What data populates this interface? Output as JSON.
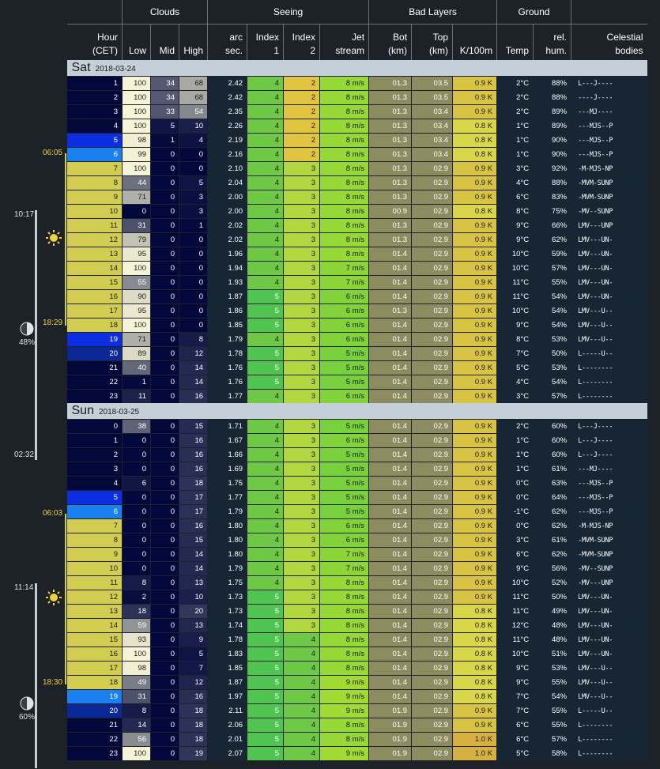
{
  "header": {
    "groups": [
      {
        "label": "",
        "span": 1
      },
      {
        "label": "Clouds",
        "span": 3
      },
      {
        "label": "Seeing",
        "span": 4
      },
      {
        "label": "Bad Layers",
        "span": 3
      },
      {
        "label": "Ground",
        "span": 2
      },
      {
        "label": "",
        "span": 1
      }
    ],
    "columns": [
      [
        "Hour",
        "(CET)"
      ],
      [
        "Low"
      ],
      [
        "Mid"
      ],
      [
        "High"
      ],
      [
        "arc",
        "sec."
      ],
      [
        "Index",
        "1"
      ],
      [
        "Index",
        "2"
      ],
      [
        "Jet",
        "stream"
      ],
      [
        "Bot",
        "(km)"
      ],
      [
        "Top",
        "(km)"
      ],
      [
        "K/100m"
      ],
      [
        "Temp"
      ],
      [
        "rel.",
        "hum."
      ],
      [
        "Celestial",
        "bodies"
      ]
    ]
  },
  "days": [
    {
      "name": "Sat",
      "date": "2018-03-24",
      "rows": [
        [
          "1",
          "100",
          "34",
          "68",
          "2.42",
          "4",
          "2",
          "8 m/s",
          "01.3",
          "03.5",
          "0.9 K",
          "2°C",
          "88%",
          "L---J----"
        ],
        [
          "2",
          "100",
          "34",
          "68",
          "2.42",
          "4",
          "2",
          "8 m/s",
          "01.3",
          "03.5",
          "0.9 K",
          "2°C",
          "88%",
          "----J----"
        ],
        [
          "3",
          "100",
          "33",
          "54",
          "2.35",
          "4",
          "2",
          "8 m/s",
          "01.3",
          "03.4",
          "0.9 K",
          "2°C",
          "89%",
          "---MJ----"
        ],
        [
          "4",
          "100",
          "5",
          "10",
          "2.26",
          "4",
          "2",
          "8 m/s",
          "01.3",
          "03.4",
          "0.8 K",
          "1°C",
          "89%",
          "---MJS--P"
        ],
        [
          "5",
          "98",
          "1",
          "4",
          "2.19",
          "4",
          "2",
          "8 m/s",
          "01.3",
          "03.4",
          "0.8 K",
          "1°C",
          "90%",
          "---MJS--P"
        ],
        [
          "6",
          "99",
          "0",
          "0",
          "2.16",
          "4",
          "2",
          "8 m/s",
          "01.3",
          "03.4",
          "0.8 K",
          "1°C",
          "90%",
          "---MJS--P"
        ],
        [
          "7",
          "100",
          "0",
          "0",
          "2.10",
          "4",
          "3",
          "8 m/s",
          "01.3",
          "02.9",
          "0.9 K",
          "3°C",
          "92%",
          "-M-MJS-NP"
        ],
        [
          "8",
          "44",
          "0",
          "5",
          "2.04",
          "4",
          "3",
          "8 m/s",
          "01.3",
          "02.9",
          "0.9 K",
          "4°C",
          "88%",
          "-MVM-SUNP"
        ],
        [
          "9",
          "71",
          "0",
          "3",
          "2.00",
          "4",
          "3",
          "8 m/s",
          "01.3",
          "02.9",
          "0.9 K",
          "6°C",
          "83%",
          "-MVM-SUNP"
        ],
        [
          "10",
          "0",
          "0",
          "3",
          "2.00",
          "4",
          "3",
          "8 m/s",
          "00.9",
          "02.9",
          "0.8 K",
          "8°C",
          "75%",
          "-MV--SUNP"
        ],
        [
          "11",
          "31",
          "0",
          "1",
          "2.02",
          "4",
          "3",
          "8 m/s",
          "01.3",
          "02.9",
          "0.9 K",
          "9°C",
          "66%",
          "LMV---UNP"
        ],
        [
          "12",
          "79",
          "0",
          "0",
          "2.02",
          "4",
          "3",
          "8 m/s",
          "01.3",
          "02.9",
          "0.9 K",
          "9°C",
          "62%",
          "LMV---UN-"
        ],
        [
          "13",
          "95",
          "0",
          "0",
          "1.96",
          "4",
          "3",
          "8 m/s",
          "01.4",
          "02.9",
          "0.9 K",
          "10°C",
          "59%",
          "LMV---UN-"
        ],
        [
          "14",
          "100",
          "0",
          "0",
          "1.94",
          "4",
          "3",
          "7 m/s",
          "01.4",
          "02.9",
          "0.9 K",
          "10°C",
          "57%",
          "LMV---UN-"
        ],
        [
          "15",
          "55",
          "0",
          "0",
          "1.93",
          "4",
          "3",
          "7 m/s",
          "01.4",
          "02.9",
          "0.9 K",
          "11°C",
          "55%",
          "LMV---UN-"
        ],
        [
          "16",
          "90",
          "0",
          "0",
          "1.87",
          "5",
          "3",
          "6 m/s",
          "01.4",
          "02.9",
          "0.9 K",
          "11°C",
          "54%",
          "LMV---UN-"
        ],
        [
          "17",
          "95",
          "0",
          "0",
          "1.86",
          "5",
          "3",
          "6 m/s",
          "01.3",
          "02.9",
          "0.9 K",
          "10°C",
          "54%",
          "LMV---U--"
        ],
        [
          "18",
          "100",
          "0",
          "0",
          "1.85",
          "5",
          "3",
          "6 m/s",
          "01.4",
          "02.9",
          "0.9 K",
          "9°C",
          "54%",
          "LMV---U--"
        ],
        [
          "19",
          "71",
          "0",
          "8",
          "1.79",
          "4",
          "3",
          "6 m/s",
          "01.4",
          "02.9",
          "0.9 K",
          "8°C",
          "53%",
          "LMV---U--"
        ],
        [
          "20",
          "89",
          "0",
          "12",
          "1.78",
          "5",
          "3",
          "5 m/s",
          "01.4",
          "02.9",
          "0.9 K",
          "7°C",
          "50%",
          "L-----U--"
        ],
        [
          "21",
          "40",
          "0",
          "14",
          "1.76",
          "5",
          "3",
          "5 m/s",
          "01.4",
          "02.9",
          "0.9 K",
          "5°C",
          "53%",
          "L--------"
        ],
        [
          "22",
          "1",
          "0",
          "14",
          "1.76",
          "5",
          "3",
          "5 m/s",
          "01.4",
          "02.9",
          "0.9 K",
          "4°C",
          "54%",
          "L--------"
        ],
        [
          "23",
          "11",
          "0",
          "16",
          "1.77",
          "4",
          "3",
          "6 m/s",
          "01.4",
          "02.9",
          "0.9 K",
          "3°C",
          "57%",
          "L--------"
        ]
      ]
    },
    {
      "name": "Sun",
      "date": "2018-03-25",
      "rows": [
        [
          "0",
          "38",
          "0",
          "15",
          "1.71",
          "4",
          "3",
          "5 m/s",
          "01.4",
          "02.9",
          "0.9 K",
          "2°C",
          "60%",
          "L---J----"
        ],
        [
          "1",
          "0",
          "0",
          "16",
          "1.67",
          "4",
          "3",
          "6 m/s",
          "01.4",
          "02.9",
          "0.9 K",
          "1°C",
          "60%",
          "L---J----"
        ],
        [
          "2",
          "0",
          "0",
          "16",
          "1.66",
          "4",
          "3",
          "5 m/s",
          "01.4",
          "02.9",
          "0.9 K",
          "1°C",
          "60%",
          "L---J----"
        ],
        [
          "3",
          "0",
          "0",
          "16",
          "1.69",
          "4",
          "3",
          "5 m/s",
          "01.4",
          "02.9",
          "0.9 K",
          "1°C",
          "61%",
          "---MJ----"
        ],
        [
          "4",
          "6",
          "0",
          "18",
          "1.75",
          "4",
          "3",
          "5 m/s",
          "01.4",
          "02.9",
          "0.9 K",
          "0°C",
          "63%",
          "---MJS--P"
        ],
        [
          "5",
          "0",
          "0",
          "17",
          "1.77",
          "4",
          "3",
          "5 m/s",
          "01.4",
          "02.9",
          "0.9 K",
          "0°C",
          "64%",
          "---MJS--P"
        ],
        [
          "6",
          "0",
          "0",
          "17",
          "1.79",
          "4",
          "3",
          "5 m/s",
          "01.4",
          "02.9",
          "0.9 K",
          "-1°C",
          "62%",
          "---MJS--P"
        ],
        [
          "7",
          "0",
          "0",
          "16",
          "1.80",
          "4",
          "3",
          "6 m/s",
          "01.4",
          "02.9",
          "0.9 K",
          "0°C",
          "62%",
          "-M-MJS-NP"
        ],
        [
          "8",
          "0",
          "0",
          "15",
          "1.80",
          "4",
          "3",
          "6 m/s",
          "01.4",
          "02.9",
          "0.9 K",
          "3°C",
          "61%",
          "-MVM-SUNP"
        ],
        [
          "9",
          "0",
          "0",
          "14",
          "1.80",
          "4",
          "3",
          "7 m/s",
          "01.4",
          "02.9",
          "0.9 K",
          "6°C",
          "62%",
          "-MVM-SUNP"
        ],
        [
          "10",
          "0",
          "0",
          "14",
          "1.79",
          "4",
          "3",
          "7 m/s",
          "01.4",
          "02.9",
          "0.9 K",
          "9°C",
          "56%",
          "-MV--SUNP"
        ],
        [
          "11",
          "8",
          "0",
          "13",
          "1.75",
          "4",
          "3",
          "8 m/s",
          "01.4",
          "02.9",
          "0.9 K",
          "10°C",
          "52%",
          "-MV---UNP"
        ],
        [
          "12",
          "2",
          "0",
          "10",
          "1.73",
          "5",
          "3",
          "8 m/s",
          "01.4",
          "02.9",
          "0.9 K",
          "11°C",
          "50%",
          "LMV---UN-"
        ],
        [
          "13",
          "18",
          "0",
          "20",
          "1.73",
          "5",
          "3",
          "8 m/s",
          "01.4",
          "02.9",
          "0.8 K",
          "11°C",
          "49%",
          "LMV---UN-"
        ],
        [
          "14",
          "59",
          "0",
          "13",
          "1.74",
          "5",
          "3",
          "8 m/s",
          "01.4",
          "02.9",
          "0.8 K",
          "12°C",
          "48%",
          "LMV---UN-"
        ],
        [
          "15",
          "93",
          "0",
          "9",
          "1.78",
          "5",
          "4",
          "8 m/s",
          "01.4",
          "02.9",
          "0.8 K",
          "11°C",
          "48%",
          "LMV---UN-"
        ],
        [
          "16",
          "100",
          "0",
          "5",
          "1.83",
          "5",
          "4",
          "8 m/s",
          "01.4",
          "02.9",
          "0.8 K",
          "10°C",
          "51%",
          "LMV---UN-"
        ],
        [
          "17",
          "98",
          "0",
          "7",
          "1.85",
          "5",
          "4",
          "8 m/s",
          "01.4",
          "02.9",
          "0.8 K",
          "9°C",
          "53%",
          "LMV---U--"
        ],
        [
          "18",
          "49",
          "0",
          "12",
          "1.87",
          "5",
          "4",
          "9 m/s",
          "01.4",
          "02.9",
          "0.8 K",
          "9°C",
          "55%",
          "LMV---U--"
        ],
        [
          "19",
          "31",
          "0",
          "16",
          "1.97",
          "5",
          "4",
          "9 m/s",
          "01.4",
          "02.9",
          "0.8 K",
          "7°C",
          "54%",
          "LMV---U--"
        ],
        [
          "20",
          "8",
          "0",
          "18",
          "2.11",
          "5",
          "4",
          "9 m/s",
          "01.9",
          "02.9",
          "0.9 K",
          "7°C",
          "55%",
          "L-----U--"
        ],
        [
          "21",
          "14",
          "0",
          "18",
          "2.06",
          "5",
          "4",
          "8 m/s",
          "01.9",
          "02.9",
          "0.9 K",
          "6°C",
          "55%",
          "L--------"
        ],
        [
          "22",
          "56",
          "0",
          "18",
          "2.01",
          "5",
          "4",
          "8 m/s",
          "01.9",
          "02.9",
          "1.0 K",
          "6°C",
          "57%",
          "L--------"
        ],
        [
          "23",
          "100",
          "0",
          "19",
          "2.07",
          "5",
          "4",
          "9 m/s",
          "01.9",
          "02.9",
          "1.0 K",
          "5°C",
          "58%",
          "L--------"
        ]
      ]
    }
  ],
  "sidebar": {
    "markers": [
      {
        "name": "sunrise-time-sat",
        "text": "06:05",
        "color": "yellow"
      },
      {
        "name": "moonset-time-sat",
        "text": "10:17",
        "color": "light"
      },
      {
        "name": "sunset-time-sat",
        "text": "18:29",
        "color": "yellow"
      },
      {
        "name": "moon-illumination-sat",
        "text": "48%",
        "color": "light"
      },
      {
        "name": "moonrise-time-sun",
        "text": "02:32",
        "color": "light"
      },
      {
        "name": "sunrise-time-sun",
        "text": "06:03",
        "color": "yellow"
      },
      {
        "name": "moonset-time-sun",
        "text": "11:14",
        "color": "light"
      },
      {
        "name": "sunset-time-sun",
        "text": "18:30",
        "color": "yellow"
      },
      {
        "name": "moon-illumination-sun",
        "text": "60%",
        "color": "light"
      }
    ],
    "icons": [
      "sun-icon",
      "moon-phase-icon"
    ]
  },
  "colors": {
    "hour_night": "#02083a",
    "hour_twilight_deep": "#0a2ee0",
    "hour_twilight": "#1a80f0",
    "hour_day": "#d2cd50",
    "background": "#1c2228",
    "day_band": "#c4cfd8",
    "text_yellow": "#f2d23a"
  }
}
